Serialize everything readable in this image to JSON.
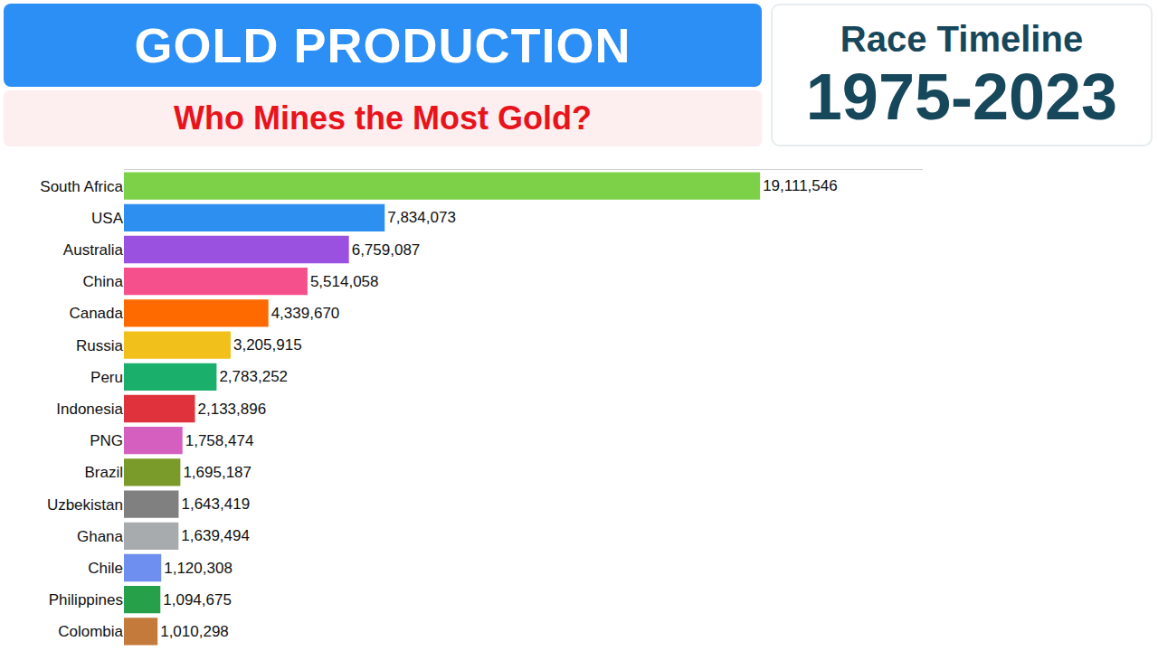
{
  "chart_data": {
    "type": "bar",
    "orientation": "horizontal",
    "title": "GOLD PRODUCTION",
    "subtitle": "Who Mines the Most Gold?",
    "annotations": [
      "Race Timeline",
      "1975-2023"
    ],
    "categories": [
      "South Africa",
      "USA",
      "Australia",
      "China",
      "Canada",
      "Russia",
      "Peru",
      "Indonesia",
      "PNG",
      "Brazil",
      "Uzbekistan",
      "Ghana",
      "Chile",
      "Philippines",
      "Colombia"
    ],
    "values": [
      19111546,
      7834073,
      6759087,
      5514058,
      4339670,
      3205915,
      2783252,
      2133896,
      1758474,
      1695187,
      1643419,
      1639494,
      1120308,
      1094675,
      1010298
    ],
    "value_labels": [
      "19,111,546",
      "7,834,073",
      "6,759,087",
      "5,514,058",
      "4,339,670",
      "3,205,915",
      "2,783,252",
      "2,133,896",
      "1,758,474",
      "1,695,187",
      "1,643,419",
      "1,639,494",
      "1,120,308",
      "1,094,675",
      "1,010,298"
    ],
    "colors": [
      "#7dd148",
      "#2d8ff0",
      "#9b51e0",
      "#f54f8c",
      "#ff6a00",
      "#f2c01a",
      "#1aaf6a",
      "#e0323c",
      "#d45fbf",
      "#7a9a2a",
      "#808080",
      "#a8abae",
      "#6f8ff0",
      "#27a04a",
      "#c47a3a"
    ],
    "xlim": [
      0,
      24000000
    ],
    "data_labels": true,
    "tick_labels": "y",
    "grid": false
  }
}
